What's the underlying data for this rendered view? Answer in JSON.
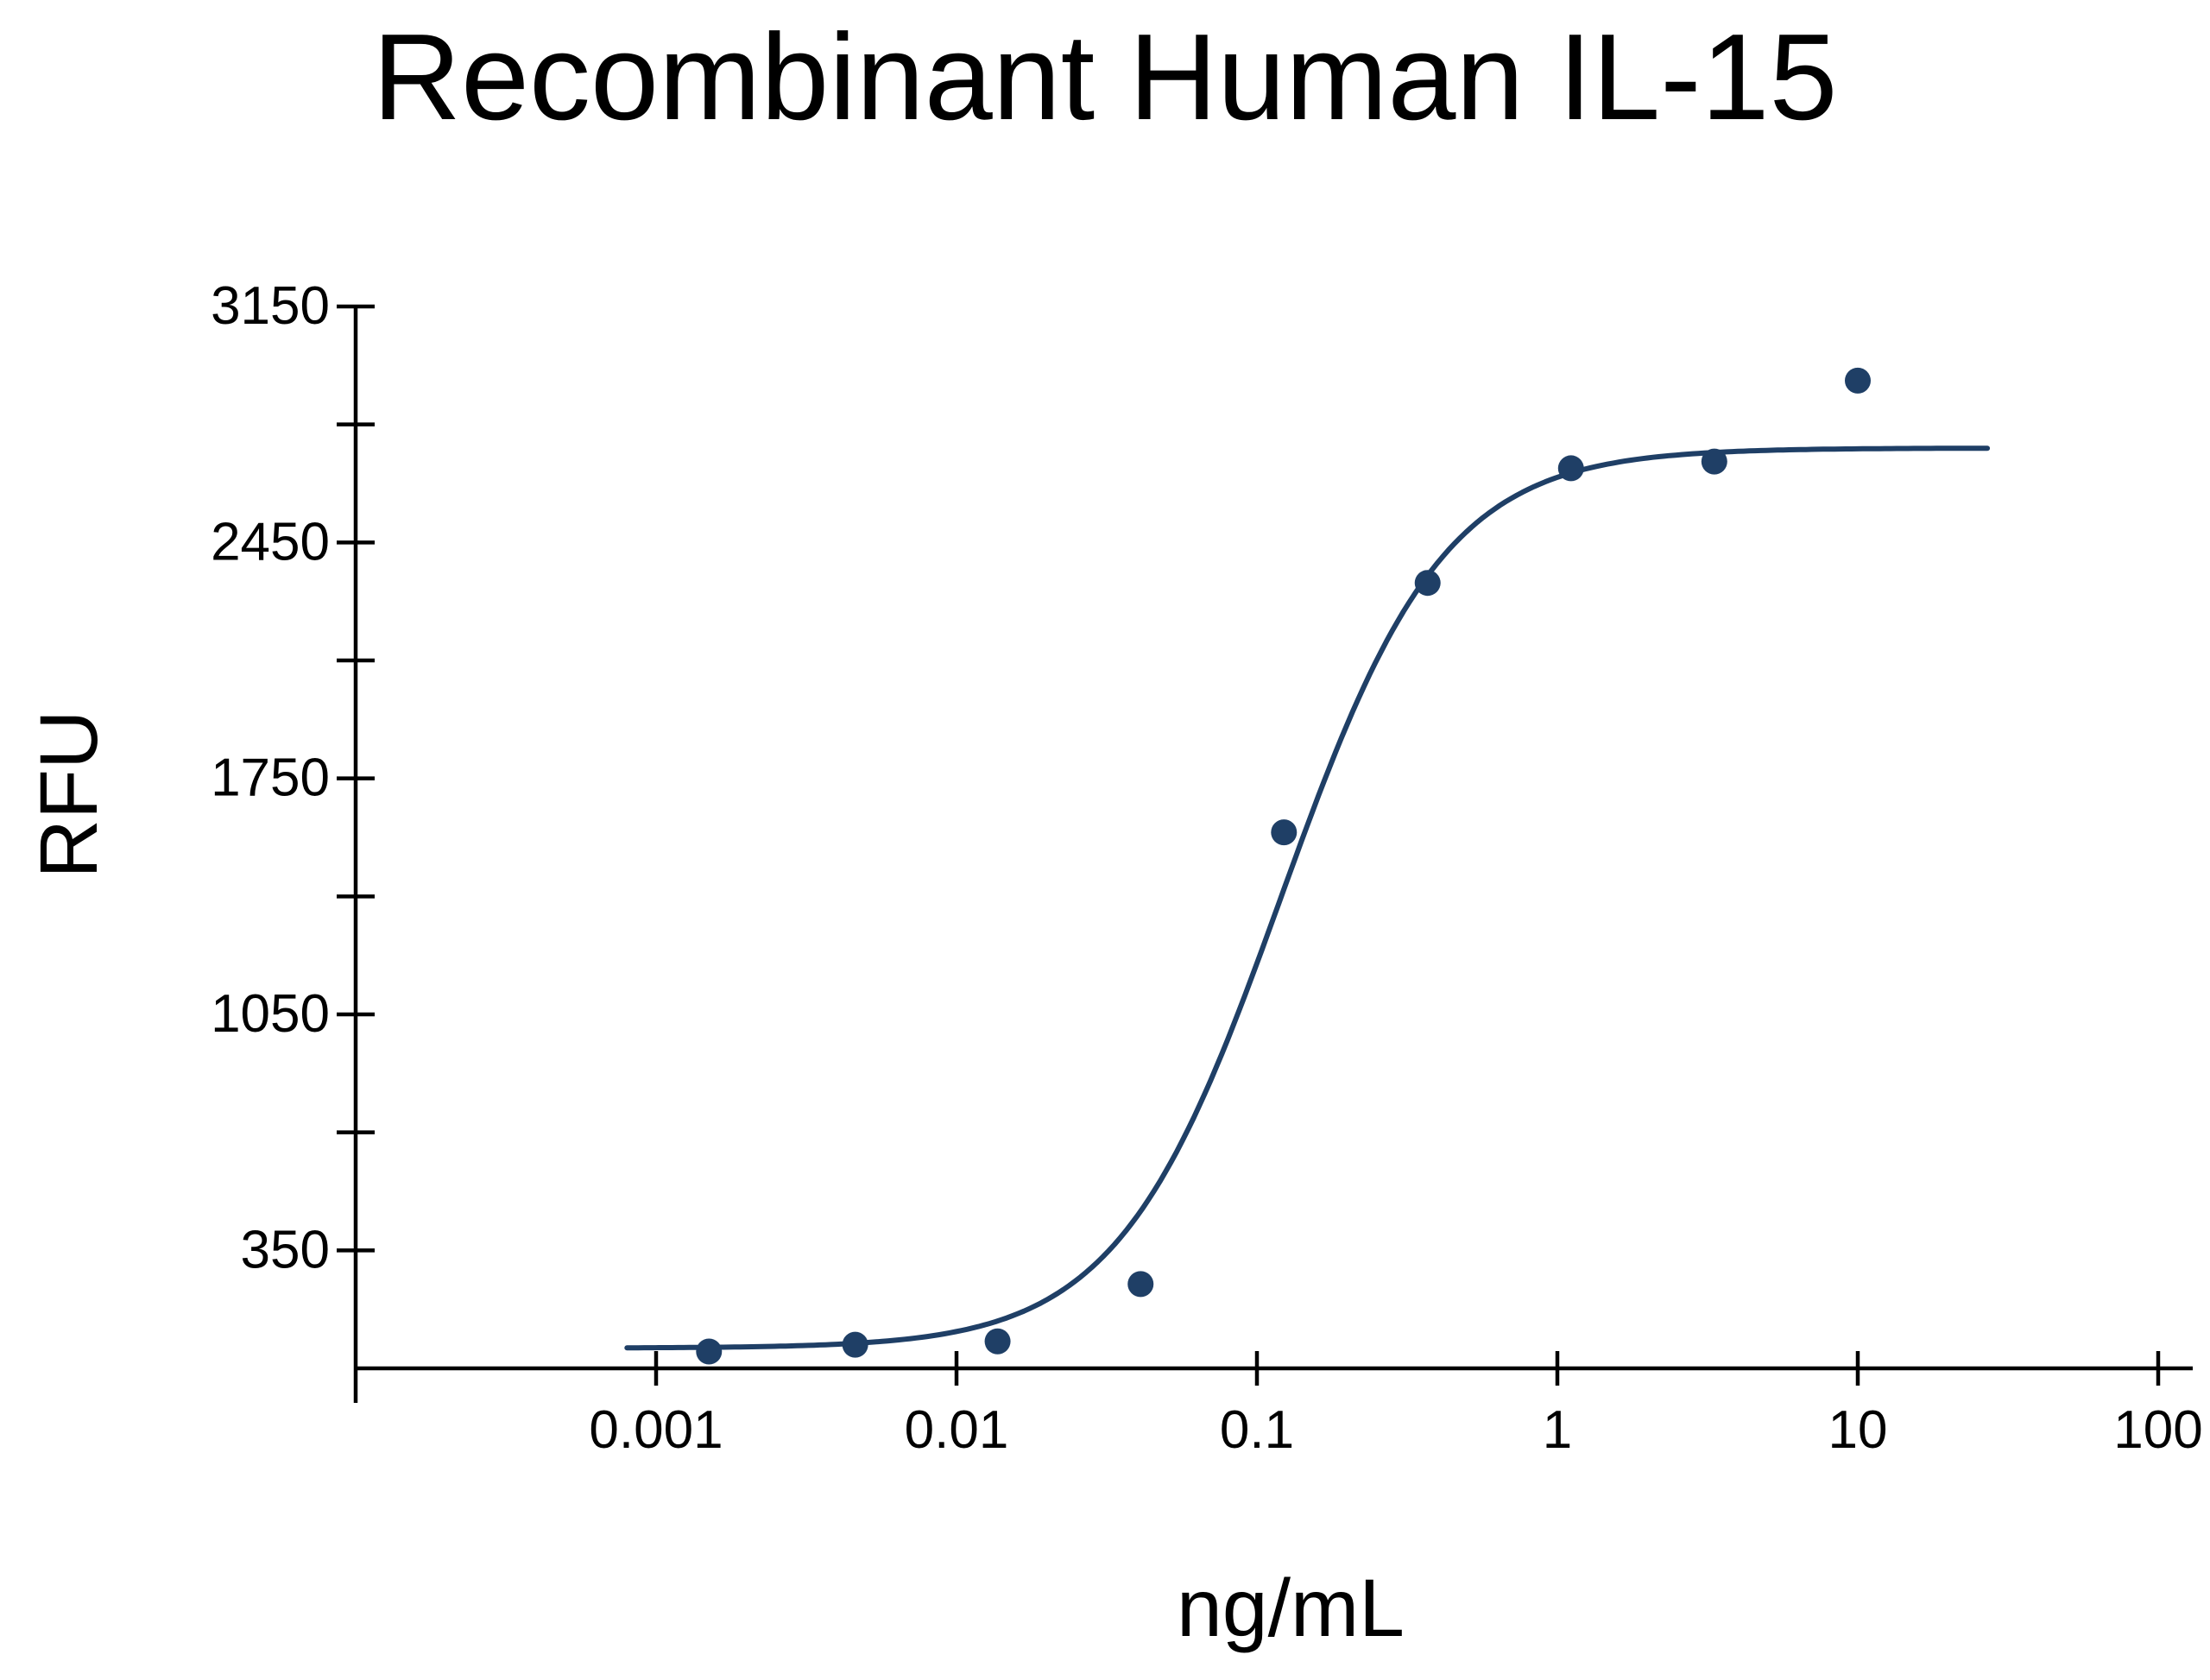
{
  "chart_data": {
    "type": "scatter",
    "title": "Recombinant Human IL-15",
    "xlabel": "ng/mL",
    "ylabel": "RFU",
    "x_scale": "log",
    "xlim": [
      0.0001,
      100
    ],
    "ylim": [
      0,
      3150
    ],
    "x_ticks": [
      0.001,
      0.01,
      0.1,
      1,
      10,
      100
    ],
    "x_tick_labels": [
      "0.001",
      "0.01",
      "0.1",
      "1",
      "10",
      "100"
    ],
    "y_major_ticks": [
      350,
      1050,
      1750,
      2450,
      3150
    ],
    "y_tick_labels": [
      "350",
      "1050",
      "1750",
      "2450",
      "3150"
    ],
    "y_minor_ticks": [
      700,
      1400,
      2100,
      2800
    ],
    "grid": false,
    "legend": "none",
    "color": "#1f3f66",
    "series": [
      {
        "points": [
          {
            "x": 0.0015,
            "y": 50
          },
          {
            "x": 0.0046,
            "y": 70
          },
          {
            "x": 0.0137,
            "y": 80
          },
          {
            "x": 0.041,
            "y": 250
          },
          {
            "x": 0.123,
            "y": 1590
          },
          {
            "x": 0.37,
            "y": 2330
          },
          {
            "x": 1.11,
            "y": 2670
          },
          {
            "x": 3.33,
            "y": 2690
          },
          {
            "x": 10,
            "y": 2930
          }
        ],
        "fit_curve": {
          "model": "4PL",
          "bottom": 60,
          "top": 2730,
          "ec50": 0.12,
          "hill": 1.6,
          "x_range": [
            0.0008,
            27
          ]
        }
      }
    ]
  }
}
